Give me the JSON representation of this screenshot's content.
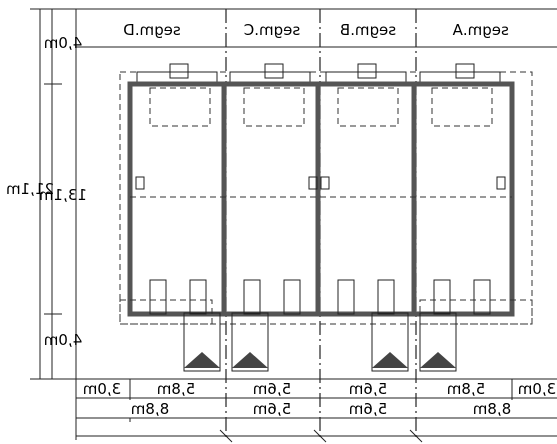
{
  "segments": {
    "a": "segm.A",
    "b": "segm.B",
    "c": "segm.C",
    "d": "segm.D"
  },
  "dimensions_vertical": {
    "total": "21,1m",
    "top": "4,0m",
    "middle": "13,1m",
    "bottom": "4,0m"
  },
  "dimensions_horizontal_row1": [
    "3,0m",
    "5,8m",
    "5,6m",
    "5,6m",
    "5,8m",
    "3,0m"
  ],
  "dimensions_horizontal_row2": [
    "8,8m",
    "5,6m",
    "5,6m",
    "8,8m"
  ],
  "colors": {
    "wall": "#555555",
    "entrance": "#444444",
    "line": "#222222"
  }
}
